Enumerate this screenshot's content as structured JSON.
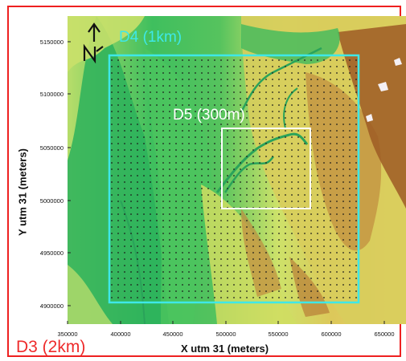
{
  "domains": {
    "d3": {
      "label": "D3 (2km)",
      "color": "#ee2b2b"
    },
    "d4": {
      "label": "D4 (1km)",
      "color": "#3ee8e8"
    },
    "d5": {
      "label": "D5 (300m)",
      "color": "#ffffff"
    }
  },
  "axes": {
    "xlabel": "X utm 31 (meters)",
    "ylabel": "Y utm 31 (meters)",
    "x_ticks": [
      "350000",
      "400000",
      "450000",
      "500000",
      "550000",
      "600000",
      "650000"
    ],
    "y_ticks": [
      "5150000",
      "5100000",
      "5050000",
      "5000000",
      "4950000",
      "4900000"
    ]
  },
  "north_arrow": {
    "label": "N",
    "icon": "north-arrow-icon"
  },
  "colors": {
    "lowland": "#1fb35a",
    "midland": "#cfe36a",
    "upland": "#d9b24e",
    "mountain": "#a55a22",
    "river": "#2aa35a"
  }
}
